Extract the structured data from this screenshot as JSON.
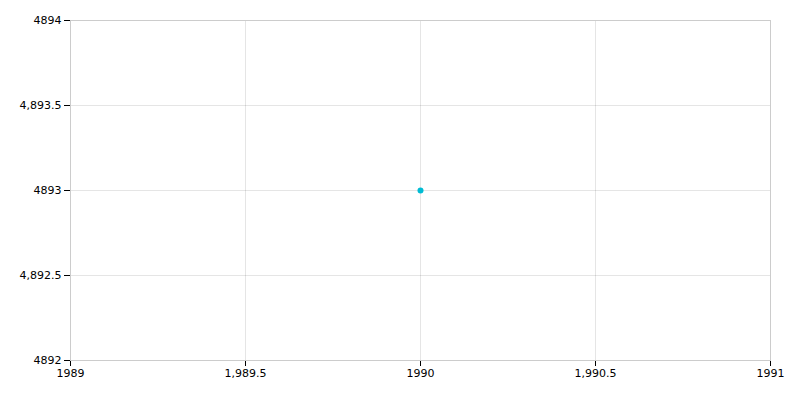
{
  "chart_data": {
    "type": "scatter",
    "x": [
      1990
    ],
    "values": [
      4893
    ],
    "color": "#00bcd4",
    "xlim": [
      1989,
      1991
    ],
    "ylim": [
      4892,
      4894
    ],
    "xticks": [
      1989,
      {
        "value": 1989.5,
        "label": "1,989.5"
      },
      1990,
      {
        "value": 1990.5,
        "label": "1,990.5"
      },
      1991
    ],
    "yticks": [
      4892,
      {
        "value": 4892.5,
        "label": "4,892.5"
      },
      4893,
      {
        "value": 4893.5,
        "label": "4,893.5"
      },
      4894
    ],
    "grid": true
  }
}
